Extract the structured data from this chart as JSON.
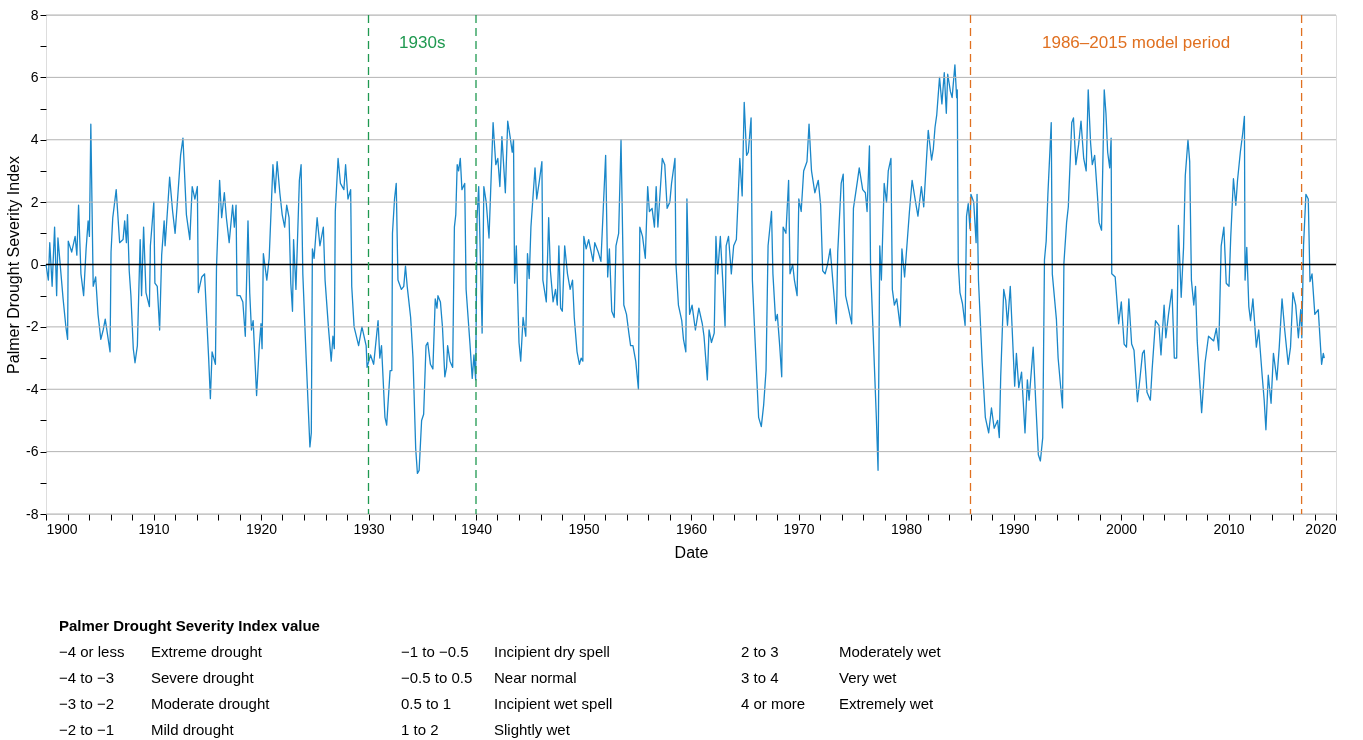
{
  "chart_data": {
    "type": "line",
    "xlabel": "Date",
    "ylabel": "Palmer Drought Severity Index",
    "xlim": [
      1900,
      2020
    ],
    "ylim": [
      -8,
      8
    ],
    "xticks": [
      1900,
      {
        "value": 1902,
        "label": null
      },
      {
        "value": 1904,
        "label": null
      },
      {
        "value": 1906,
        "label": null
      },
      {
        "value": 1908,
        "label": null
      },
      1910,
      {
        "value": 1912,
        "label": null
      },
      {
        "value": 1914,
        "label": null
      },
      {
        "value": 1916,
        "label": null
      },
      {
        "value": 1918,
        "label": null
      },
      1920,
      {
        "value": 1922,
        "label": null
      },
      {
        "value": 1924,
        "label": null
      },
      {
        "value": 1926,
        "label": null
      },
      {
        "value": 1928,
        "label": null
      },
      1930,
      {
        "value": 1932,
        "label": null
      },
      {
        "value": 1934,
        "label": null
      },
      {
        "value": 1936,
        "label": null
      },
      {
        "value": 1938,
        "label": null
      },
      1940,
      {
        "value": 1942,
        "label": null
      },
      {
        "value": 1944,
        "label": null
      },
      {
        "value": 1946,
        "label": null
      },
      {
        "value": 1948,
        "label": null
      },
      1950,
      {
        "value": 1952,
        "label": null
      },
      {
        "value": 1954,
        "label": null
      },
      {
        "value": 1956,
        "label": null
      },
      {
        "value": 1958,
        "label": null
      },
      1960,
      {
        "value": 1962,
        "label": null
      },
      {
        "value": 1964,
        "label": null
      },
      {
        "value": 1966,
        "label": null
      },
      {
        "value": 1968,
        "label": null
      },
      1970,
      {
        "value": 1972,
        "label": null
      },
      {
        "value": 1974,
        "label": null
      },
      {
        "value": 1976,
        "label": null
      },
      {
        "value": 1978,
        "label": null
      },
      1980,
      {
        "value": 1982,
        "label": null
      },
      {
        "value": 1984,
        "label": null
      },
      {
        "value": 1986,
        "label": null
      },
      {
        "value": 1988,
        "label": null
      },
      1990,
      {
        "value": 1992,
        "label": null
      },
      {
        "value": 1994,
        "label": null
      },
      {
        "value": 1996,
        "label": null
      },
      {
        "value": 1998,
        "label": null
      },
      2000,
      {
        "value": 2002,
        "label": null
      },
      {
        "value": 2004,
        "label": null
      },
      {
        "value": 2006,
        "label": null
      },
      {
        "value": 2008,
        "label": null
      },
      2010,
      {
        "value": 2012,
        "label": null
      },
      {
        "value": 2014,
        "label": null
      },
      {
        "value": 2016,
        "label": null
      },
      {
        "value": 2018,
        "label": null
      },
      2020
    ],
    "yticks": [
      -8,
      {
        "value": -7,
        "label": null
      },
      -6,
      {
        "value": -5,
        "label": null
      },
      -4,
      {
        "value": -3,
        "label": null
      },
      -2,
      {
        "value": -1,
        "label": null
      },
      0,
      {
        "value": 1,
        "label": null
      },
      2,
      {
        "value": 3,
        "label": null
      },
      4,
      {
        "value": 5,
        "label": null
      },
      6,
      {
        "value": 7,
        "label": null
      },
      8
    ],
    "grid": "y",
    "marker": "none",
    "line_style": "solid",
    "series": [
      {
        "color": "#1a87c9",
        "x": [
          1900.0,
          1900.22,
          1900.35,
          1900.57,
          1900.8,
          1900.99,
          1901.11,
          1901.59,
          1901.85,
          1902.01,
          1902.07,
          1902.39,
          1902.71,
          1902.87,
          1903.03,
          1903.25,
          1903.5,
          1903.73,
          1903.92,
          1904.04,
          1904.17,
          1904.39,
          1904.62,
          1904.84,
          1905.1,
          1905.32,
          1905.51,
          1905.96,
          1906.05,
          1906.21,
          1906.53,
          1906.85,
          1907.17,
          1907.32,
          1907.48,
          1907.58,
          1907.74,
          1907.9,
          1908.12,
          1908.28,
          1908.5,
          1908.76,
          1908.89,
          1909.08,
          1909.3,
          1909.62,
          1909.71,
          1910.03,
          1910.13,
          1910.35,
          1910.57,
          1910.76,
          1910.99,
          1911.08,
          1911.37,
          1911.5,
          1911.78,
          1912.01,
          1912.2,
          1912.52,
          1912.74,
          1913.06,
          1913.38,
          1913.6,
          1913.85,
          1914.08,
          1914.17,
          1914.49,
          1914.75,
          1915.13,
          1915.29,
          1915.45,
          1915.76,
          1915.86,
          1916.15,
          1916.34,
          1916.59,
          1916.78,
          1917.04,
          1917.36,
          1917.52,
          1917.68,
          1917.77,
          1918.06,
          1918.31,
          1918.54,
          1918.79,
          1918.95,
          1919.11,
          1919.27,
          1919.59,
          1919.84,
          1920.0,
          1920.1,
          1920.22,
          1920.54,
          1920.76,
          1921.11,
          1921.31,
          1921.5,
          1921.75,
          1921.97,
          1922.2,
          1922.39,
          1922.61,
          1922.77,
          1922.93,
          1923.03,
          1923.25,
          1923.57,
          1923.73,
          1923.89,
          1924.2,
          1924.55,
          1924.68,
          1924.78,
          1924.94,
          1925.22,
          1925.48,
          1925.8,
          1925.96,
          1926.27,
          1926.53,
          1926.69,
          1926.82,
          1926.91,
          1927.17,
          1927.39,
          1927.71,
          1927.87,
          1928.09,
          1928.34,
          1928.44,
          1928.66,
          1929.08,
          1929.39,
          1929.78,
          1929.87,
          1930.19,
          1930.48,
          1930.89,
          1931.05,
          1931.21,
          1931.53,
          1931.69,
          1932.01,
          1932.17,
          1932.23,
          1932.42,
          1932.58,
          1932.74,
          1933.06,
          1933.28,
          1933.44,
          1933.6,
          1933.76,
          1933.92,
          1934.14,
          1934.39,
          1934.55,
          1934.71,
          1934.94,
          1935.13,
          1935.35,
          1935.51,
          1935.76,
          1935.99,
          1936.21,
          1936.37,
          1936.46,
          1936.69,
          1936.88,
          1937.1,
          1937.26,
          1937.36,
          1937.58,
          1937.83,
          1937.99,
          1938.12,
          1938.25,
          1938.38,
          1938.54,
          1938.69,
          1938.95,
          1939.08,
          1939.43,
          1939.65,
          1939.81,
          1939.97,
          1940.1,
          1940.25,
          1940.57,
          1940.73,
          1940.95,
          1941.21,
          1941.59,
          1941.84,
          1942.03,
          1942.22,
          1942.41,
          1942.73,
          1942.95,
          1943.17,
          1943.37,
          1943.49,
          1943.59,
          1943.75,
          1944.0,
          1944.16,
          1944.38,
          1944.63,
          1944.79,
          1944.95,
          1945.11,
          1945.49,
          1945.65,
          1945.9,
          1946.13,
          1946.22,
          1946.54,
          1946.76,
          1946.92,
          1947.17,
          1947.4,
          1947.56,
          1947.71,
          1947.87,
          1948.03,
          1948.25,
          1948.51,
          1948.76,
          1948.98,
          1949.14,
          1949.4,
          1949.62,
          1949.78,
          1949.94,
          1950.03,
          1950.25,
          1950.48,
          1950.89,
          1951.05,
          1951.37,
          1951.62,
          1951.84,
          1952.06,
          1952.25,
          1952.41,
          1952.63,
          1952.86,
          1953.02,
          1953.27,
          1953.49,
          1953.75,
          1954.0,
          1954.22,
          1954.38,
          1954.6,
          1954.86,
          1955.11,
          1955.24,
          1955.49,
          1955.75,
          1955.97,
          1956.13,
          1956.38,
          1956.6,
          1956.76,
          1956.92,
          1957.33,
          1957.56,
          1957.78,
          1958.03,
          1958.19,
          1958.51,
          1958.6,
          1958.83,
          1959.14,
          1959.3,
          1959.52,
          1959.62,
          1959.87,
          1960.1,
          1960.41,
          1960.73,
          1961.05,
          1961.21,
          1961.52,
          1961.68,
          1961.9,
          1962.16,
          1962.32,
          1962.48,
          1962.73,
          1962.95,
          1963.17,
          1963.27,
          1963.49,
          1963.75,
          1963.97,
          1964.22,
          1964.54,
          1964.76,
          1964.95,
          1965.17,
          1965.33,
          1965.59,
          1965.71,
          1965.97,
          1966.29,
          1966.54,
          1966.76,
          1966.98,
          1967.17,
          1967.49,
          1967.62,
          1967.87,
          1968.03,
          1968.25,
          1968.44,
          1968.57,
          1968.83,
          1969.08,
          1969.21,
          1969.46,
          1969.62,
          1969.87,
          1970.03,
          1970.25,
          1970.48,
          1970.79,
          1970.98,
          1971.21,
          1971.52,
          1971.84,
          1972.06,
          1972.25,
          1972.48,
          1972.7,
          1972.95,
          1973.21,
          1973.52,
          1973.65,
          1973.97,
          1974.16,
          1974.38,
          1974.7,
          1974.95,
          1975.11,
          1975.49,
          1975.65,
          1975.97,
          1976.22,
          1976.38,
          1976.6,
          1976.7,
          1976.92,
          1977.24,
          1977.4,
          1977.56,
          1977.71,
          1977.97,
          1978.19,
          1978.35,
          1978.6,
          1978.73,
          1978.92,
          1979.14,
          1979.46,
          1979.62,
          1979.87,
          1980.32,
          1980.57,
          1980.89,
          1981.11,
          1981.43,
          1981.65,
          1981.91,
          1982.07,
          1982.38,
          1982.54,
          1982.7,
          1982.86,
          1983.12,
          1983.34,
          1983.56,
          1983.75,
          1983.88,
          1984.13,
          1984.29,
          1984.55,
          1984.71,
          1984.77,
          1984.86,
          1985.02,
          1985.25,
          1985.5,
          1985.63,
          1985.79,
          1985.95,
          1986.04,
          1986.3,
          1986.52,
          1986.61,
          1986.74,
          1987.09,
          1987.38,
          1987.69,
          1987.95,
          1988.2,
          1988.52,
          1988.68,
          1988.81,
          1989.09,
          1989.28,
          1989.44,
          1989.7,
          1990.11,
          1990.27,
          1990.49,
          1990.75,
          1991.07,
          1991.29,
          1991.45,
          1991.83,
          1992.08,
          1992.31,
          1992.5,
          1992.72,
          1992.88,
          1993.04,
          1993.2,
          1993.51,
          1993.61,
          1993.99,
          1994.15,
          1994.56,
          1994.69,
          1994.94,
          1995.1,
          1995.42,
          1995.58,
          1995.8,
          1996.06,
          1996.28,
          1996.53,
          1996.76,
          1996.95,
          1997.17,
          1997.33,
          1997.55,
          1997.81,
          1997.96,
          1998.19,
          1998.35,
          1998.44,
          1998.6,
          1998.76,
          1998.95,
          1999.08,
          1999.14,
          1999.46,
          1999.78,
          2000.03,
          2000.29,
          2000.51,
          2000.73,
          2000.99,
          2001.21,
          2001.53,
          2001.78,
          2002.0,
          2002.16,
          2002.42,
          2002.73,
          2002.89,
          2003.21,
          2003.53,
          2003.72,
          2004.01,
          2004.17,
          2004.42,
          2004.74,
          2004.96,
          2005.18,
          2005.34,
          2005.6,
          2005.82,
          2005.98,
          2006.23,
          2006.39,
          2006.55,
          2006.77,
          2006.93,
          2007.09,
          2007.5,
          2007.82,
          2008.14,
          2008.62,
          2008.87,
          2009.09,
          2009.32,
          2009.57,
          2009.79,
          2010.05,
          2010.21,
          2010.46,
          2010.68,
          2010.84,
          2011.1,
          2011.32,
          2011.48,
          2011.54,
          2011.7,
          2011.89,
          2012.05,
          2012.27,
          2012.59,
          2012.81,
          2013.13,
          2013.32,
          2013.48,
          2013.7,
          2013.96,
          2014.18,
          2014.5,
          2014.72,
          2014.98,
          2015.23,
          2015.55,
          2015.77,
          2015.99,
          2016.25,
          2016.5,
          2016.72,
          2016.82,
          2016.98,
          2017.2,
          2017.42,
          2017.58,
          2017.77,
          2018.03,
          2018.35,
          2018.66,
          2018.82,
          2018.91
        ],
        "values": [
          0.0,
          -0.5,
          0.7,
          -0.7,
          1.2,
          -1.0,
          0.85,
          -1.1,
          -2.0,
          -2.4,
          0.75,
          0.4,
          0.9,
          0.3,
          1.9,
          -0.3,
          -1.0,
          0.5,
          1.4,
          0.9,
          4.5,
          -0.7,
          -0.4,
          -1.6,
          -2.4,
          -2.1,
          -1.75,
          -2.8,
          0.4,
          1.5,
          2.4,
          0.7,
          0.8,
          1.4,
          0.7,
          1.6,
          -0.2,
          -1.0,
          -2.7,
          -3.15,
          -2.6,
          0.8,
          -1.0,
          1.2,
          -0.9,
          -1.35,
          0.6,
          2.0,
          -0.6,
          -0.7,
          -2.1,
          0.3,
          1.4,
          0.6,
          2.1,
          2.8,
          1.7,
          1.0,
          1.9,
          3.5,
          4.05,
          1.6,
          0.8,
          2.5,
          2.1,
          2.5,
          -0.9,
          -0.4,
          -0.3,
          -3.0,
          -4.3,
          -2.8,
          -3.2,
          -0.1,
          2.7,
          1.5,
          2.3,
          1.5,
          0.7,
          1.9,
          1.2,
          1.9,
          -1.0,
          -1.0,
          -1.2,
          -2.3,
          1.4,
          -0.9,
          -2.1,
          -1.8,
          -4.2,
          -2.6,
          -1.9,
          -2.7,
          0.35,
          -0.5,
          0.2,
          3.2,
          2.3,
          3.3,
          2.3,
          1.6,
          1.2,
          1.9,
          1.5,
          -0.6,
          -1.5,
          0.8,
          -0.8,
          2.7,
          3.2,
          -0.3,
          -3.0,
          -5.85,
          -5.4,
          0.5,
          0.2,
          1.5,
          0.6,
          1.2,
          -0.5,
          -2.0,
          -3.1,
          -2.3,
          -2.7,
          1.7,
          3.4,
          2.6,
          2.4,
          3.2,
          2.1,
          2.4,
          -0.7,
          -2.0,
          -2.6,
          -2.0,
          -2.6,
          -3.3,
          -2.9,
          -3.2,
          -1.8,
          -3.0,
          -2.6,
          -4.9,
          -5.15,
          -3.4,
          -3.4,
          1.0,
          2.1,
          2.6,
          -0.5,
          -0.8,
          -0.7,
          -0.05,
          -0.7,
          -1.2,
          -1.7,
          -3.0,
          -5.9,
          -6.7,
          -6.6,
          -5.0,
          -4.8,
          -2.6,
          -2.5,
          -3.2,
          -3.35,
          -1.1,
          -1.4,
          -1.0,
          -1.2,
          -2.0,
          -3.6,
          -3.3,
          -2.6,
          -3.1,
          -3.3,
          1.2,
          1.6,
          3.2,
          3.0,
          3.4,
          2.4,
          2.6,
          -0.8,
          -2.5,
          -3.65,
          -2.9,
          -3.7,
          1.5,
          2.5,
          -2.2,
          2.5,
          2.0,
          0.85,
          4.55,
          3.2,
          3.4,
          2.5,
          4.1,
          2.3,
          4.6,
          4.1,
          3.6,
          4.0,
          -0.6,
          0.6,
          -2.5,
          -3.1,
          -1.7,
          -2.3,
          0.35,
          -0.45,
          1.2,
          3.1,
          2.1,
          2.7,
          3.3,
          -0.5,
          -1.2,
          1.5,
          -0.2,
          -1.2,
          -0.8,
          -1.3,
          0.6,
          -1.4,
          -1.5,
          0.6,
          -0.3,
          -0.8,
          -0.5,
          -1.7,
          -2.8,
          -3.2,
          -3.0,
          -3.1,
          0.9,
          0.5,
          0.8,
          0.1,
          0.7,
          0.4,
          0.1,
          1.8,
          3.5,
          -0.4,
          0.5,
          -1.5,
          -1.7,
          0.6,
          1.0,
          4.0,
          -1.3,
          -1.6,
          -2.2,
          -2.6,
          -2.6,
          -3.1,
          -4.0,
          1.2,
          0.9,
          0.2,
          2.5,
          1.7,
          1.8,
          1.2,
          2.5,
          1.2,
          3.4,
          3.2,
          1.8,
          2.0,
          2.6,
          3.4,
          0.0,
          -1.3,
          -1.8,
          -2.4,
          -2.8,
          2.1,
          -1.6,
          -1.3,
          -2.1,
          -1.4,
          -1.9,
          -2.3,
          -3.7,
          -2.1,
          -2.5,
          -2.2,
          0.9,
          -0.3,
          0.9,
          -0.5,
          -2.0,
          0.6,
          0.9,
          -0.3,
          0.6,
          0.8,
          3.4,
          2.2,
          5.2,
          3.5,
          3.6,
          4.7,
          -0.5,
          -2.5,
          -4.9,
          -5.2,
          -4.5,
          -3.4,
          0.6,
          1.7,
          -0.3,
          -1.8,
          -1.6,
          -2.6,
          -3.6,
          1.2,
          1.0,
          2.7,
          -0.3,
          0.0,
          -0.5,
          -1.0,
          2.1,
          1.7,
          3.0,
          3.3,
          4.5,
          3.0,
          2.3,
          2.7,
          1.9,
          -0.2,
          -0.3,
          0.0,
          0.5,
          -0.6,
          -1.9,
          0.4,
          2.6,
          2.9,
          -1.0,
          -1.5,
          -1.9,
          1.8,
          2.7,
          3.1,
          2.4,
          2.3,
          1.7,
          3.8,
          0.0,
          -2.0,
          -4.9,
          -6.6,
          0.6,
          -0.5,
          2.6,
          2.0,
          3.0,
          3.4,
          -0.8,
          -1.3,
          -1.1,
          -2.0,
          0.5,
          -0.4,
          1.7,
          2.7,
          2.0,
          1.55,
          2.5,
          1.85,
          3.4,
          4.3,
          3.35,
          3.7,
          4.4,
          4.8,
          6.0,
          5.15,
          6.15,
          4.85,
          6.1,
          5.55,
          5.35,
          6.4,
          5.35,
          5.6,
          0.05,
          -0.9,
          -1.25,
          -1.95,
          1.55,
          1.95,
          1.15,
          2.25,
          2.0,
          0.7,
          2.25,
          -0.5,
          -3.15,
          -4.9,
          -5.4,
          -4.6,
          -5.25,
          -5.0,
          -5.55,
          -3.6,
          -0.8,
          -1.15,
          -1.95,
          -0.7,
          -3.9,
          -2.85,
          -3.95,
          -3.45,
          -5.4,
          -3.7,
          -4.35,
          -2.65,
          -4.5,
          -6.1,
          -6.3,
          -5.55,
          0.15,
          0.75,
          2.25,
          4.55,
          -0.3,
          -1.75,
          -3.0,
          -4.6,
          0.05,
          1.35,
          1.85,
          4.55,
          4.7,
          3.2,
          3.85,
          4.6,
          3.4,
          3.0,
          5.6,
          3.9,
          3.2,
          3.5,
          2.2,
          1.35,
          1.1,
          3.95,
          5.6,
          4.85,
          3.6,
          3.1,
          4.05,
          -0.3,
          -0.4,
          -1.9,
          -1.2,
          -2.55,
          -2.65,
          -1.1,
          -2.55,
          -2.75,
          -4.4,
          -3.6,
          -2.85,
          -2.75,
          -4.1,
          -4.35,
          -3.4,
          -1.8,
          -1.95,
          -2.9,
          -1.3,
          -2.35,
          -1.6,
          -0.8,
          -3.0,
          -3.0,
          1.25,
          -1.05,
          0.55,
          2.85,
          4.0,
          3.3,
          -0.5,
          -1.3,
          -0.7,
          -2.45,
          -4.75,
          -3.15,
          -2.3,
          -2.45,
          -2.05,
          -2.75,
          0.6,
          1.2,
          -0.6,
          -0.7,
          0.9,
          2.75,
          1.9,
          2.7,
          3.6,
          4.2,
          4.75,
          -0.5,
          0.55,
          -1.35,
          -1.8,
          -1.1,
          -2.65,
          -2.1,
          -3.55,
          -4.35,
          -5.3,
          -3.55,
          -4.45,
          -2.85,
          -3.7,
          -2.65,
          -1.1,
          -2.1,
          -3.2,
          -2.65,
          -0.9,
          -1.3,
          -2.35,
          -1.45,
          -2.35,
          0.6,
          2.25,
          2.1,
          -0.55,
          -0.3,
          -1.6,
          -1.45,
          -3.2,
          -2.85,
          -3.0
        ]
      }
    ],
    "ref_lines": [
      {
        "axis": "y",
        "value": 0,
        "color": "#000000",
        "line_style": "solid"
      },
      {
        "axis": "x",
        "value": 1930,
        "color": "#1f9950",
        "line_style": "dashed",
        "label": "1930s"
      },
      {
        "axis": "x",
        "value": 1940,
        "color": "#1f9950",
        "line_style": "dashed"
      },
      {
        "axis": "x",
        "value": 1986,
        "color": "#e07020",
        "line_style": "dashed",
        "label": "1986–2015 model period"
      },
      {
        "axis": "x",
        "value": 2016.8,
        "color": "#e07020",
        "line_style": "dashed"
      }
    ],
    "annotations": [
      "Palmer Drought Severity Index value",
      "−4 or less",
      "Extreme drought",
      "−4 to −3",
      "Severe drought",
      "−3 to −2",
      "Moderate drought",
      "−2 to −1",
      "Mild drought",
      "−1 to −0.5",
      "Incipient dry spell",
      "−0.5 to 0.5",
      "Near normal",
      "0.5 to 1",
      "Incipient wet spell",
      "1 to 2",
      "Slightly wet",
      "2 to 3",
      "Moderately wet",
      "3 to 4",
      "Very wet",
      "4 or more",
      "Extremely wet"
    ]
  }
}
